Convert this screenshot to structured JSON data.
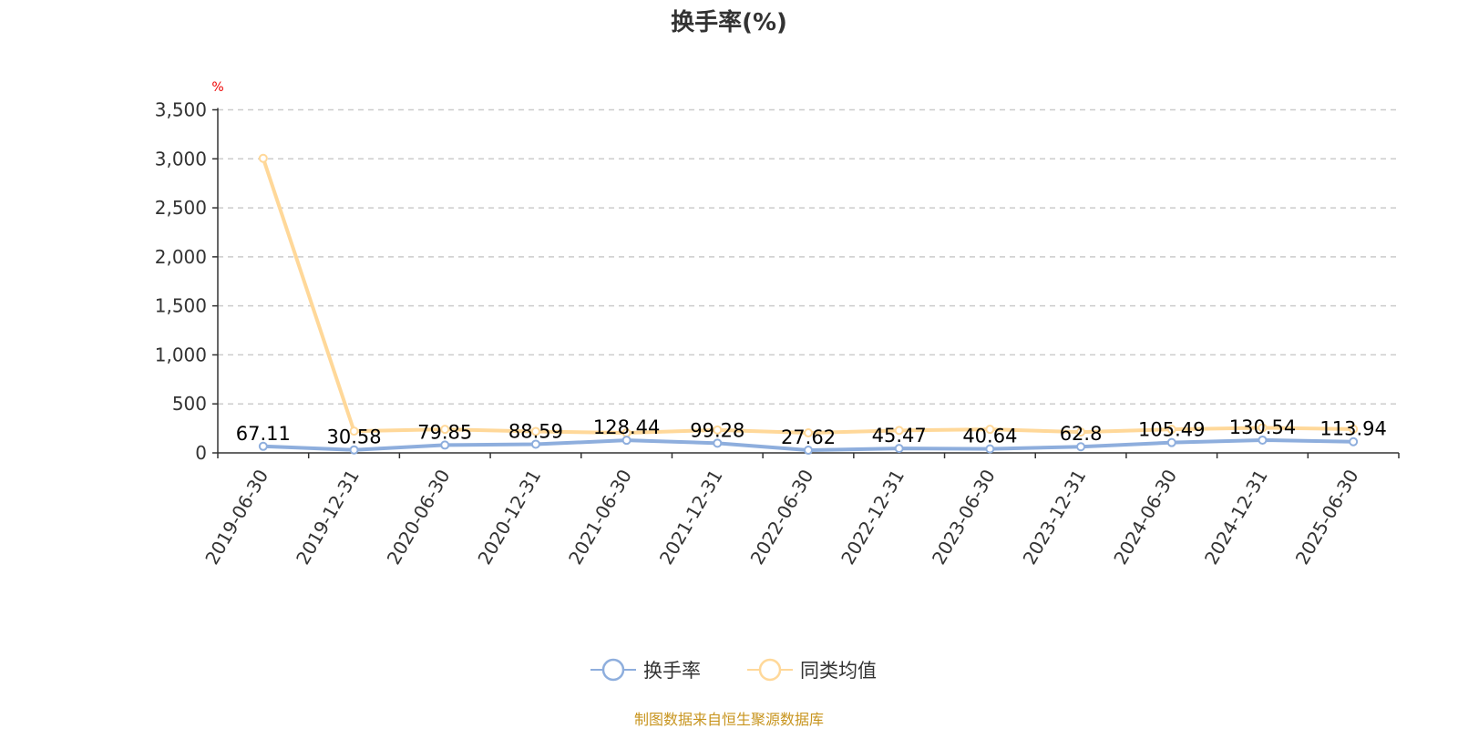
{
  "chart_data": {
    "type": "line",
    "title": "换手率(%)",
    "ylabel": "%",
    "ylim": [
      0,
      3500
    ],
    "yticks": [
      0,
      500,
      1000,
      1500,
      2000,
      2500,
      3000,
      3500
    ],
    "ytick_labels": [
      "0",
      "500",
      "1,000",
      "1,500",
      "2,000",
      "2,500",
      "3,000",
      "3,500"
    ],
    "grid": true,
    "legend_position": "bottom",
    "categories": [
      "2019-06-30",
      "2019-12-31",
      "2020-06-30",
      "2020-12-31",
      "2021-06-30",
      "2021-12-31",
      "2022-06-30",
      "2022-12-31",
      "2023-06-30",
      "2023-12-31",
      "2024-06-30",
      "2024-12-31",
      "2025-06-30"
    ],
    "series": [
      {
        "name": "换手率",
        "color": "#8eaedd",
        "values": [
          67.11,
          30.58,
          79.85,
          88.59,
          128.44,
          99.28,
          27.62,
          45.47,
          40.64,
          62.8,
          105.49,
          130.54,
          113.94
        ],
        "labels": [
          "67.11",
          "30.58",
          "79.85",
          "88.59",
          "128.44",
          "99.28",
          "27.62",
          "45.47",
          "40.64",
          "62.8",
          "105.49",
          "130.54",
          "113.94"
        ]
      },
      {
        "name": "同类均值",
        "color": "#ffd899",
        "values": [
          3005,
          222,
          240,
          219,
          204,
          234,
          204,
          229,
          240,
          213,
          240,
          256,
          243
        ]
      }
    ]
  },
  "footer": {
    "source": "制图数据来自恒生聚源数据库"
  }
}
